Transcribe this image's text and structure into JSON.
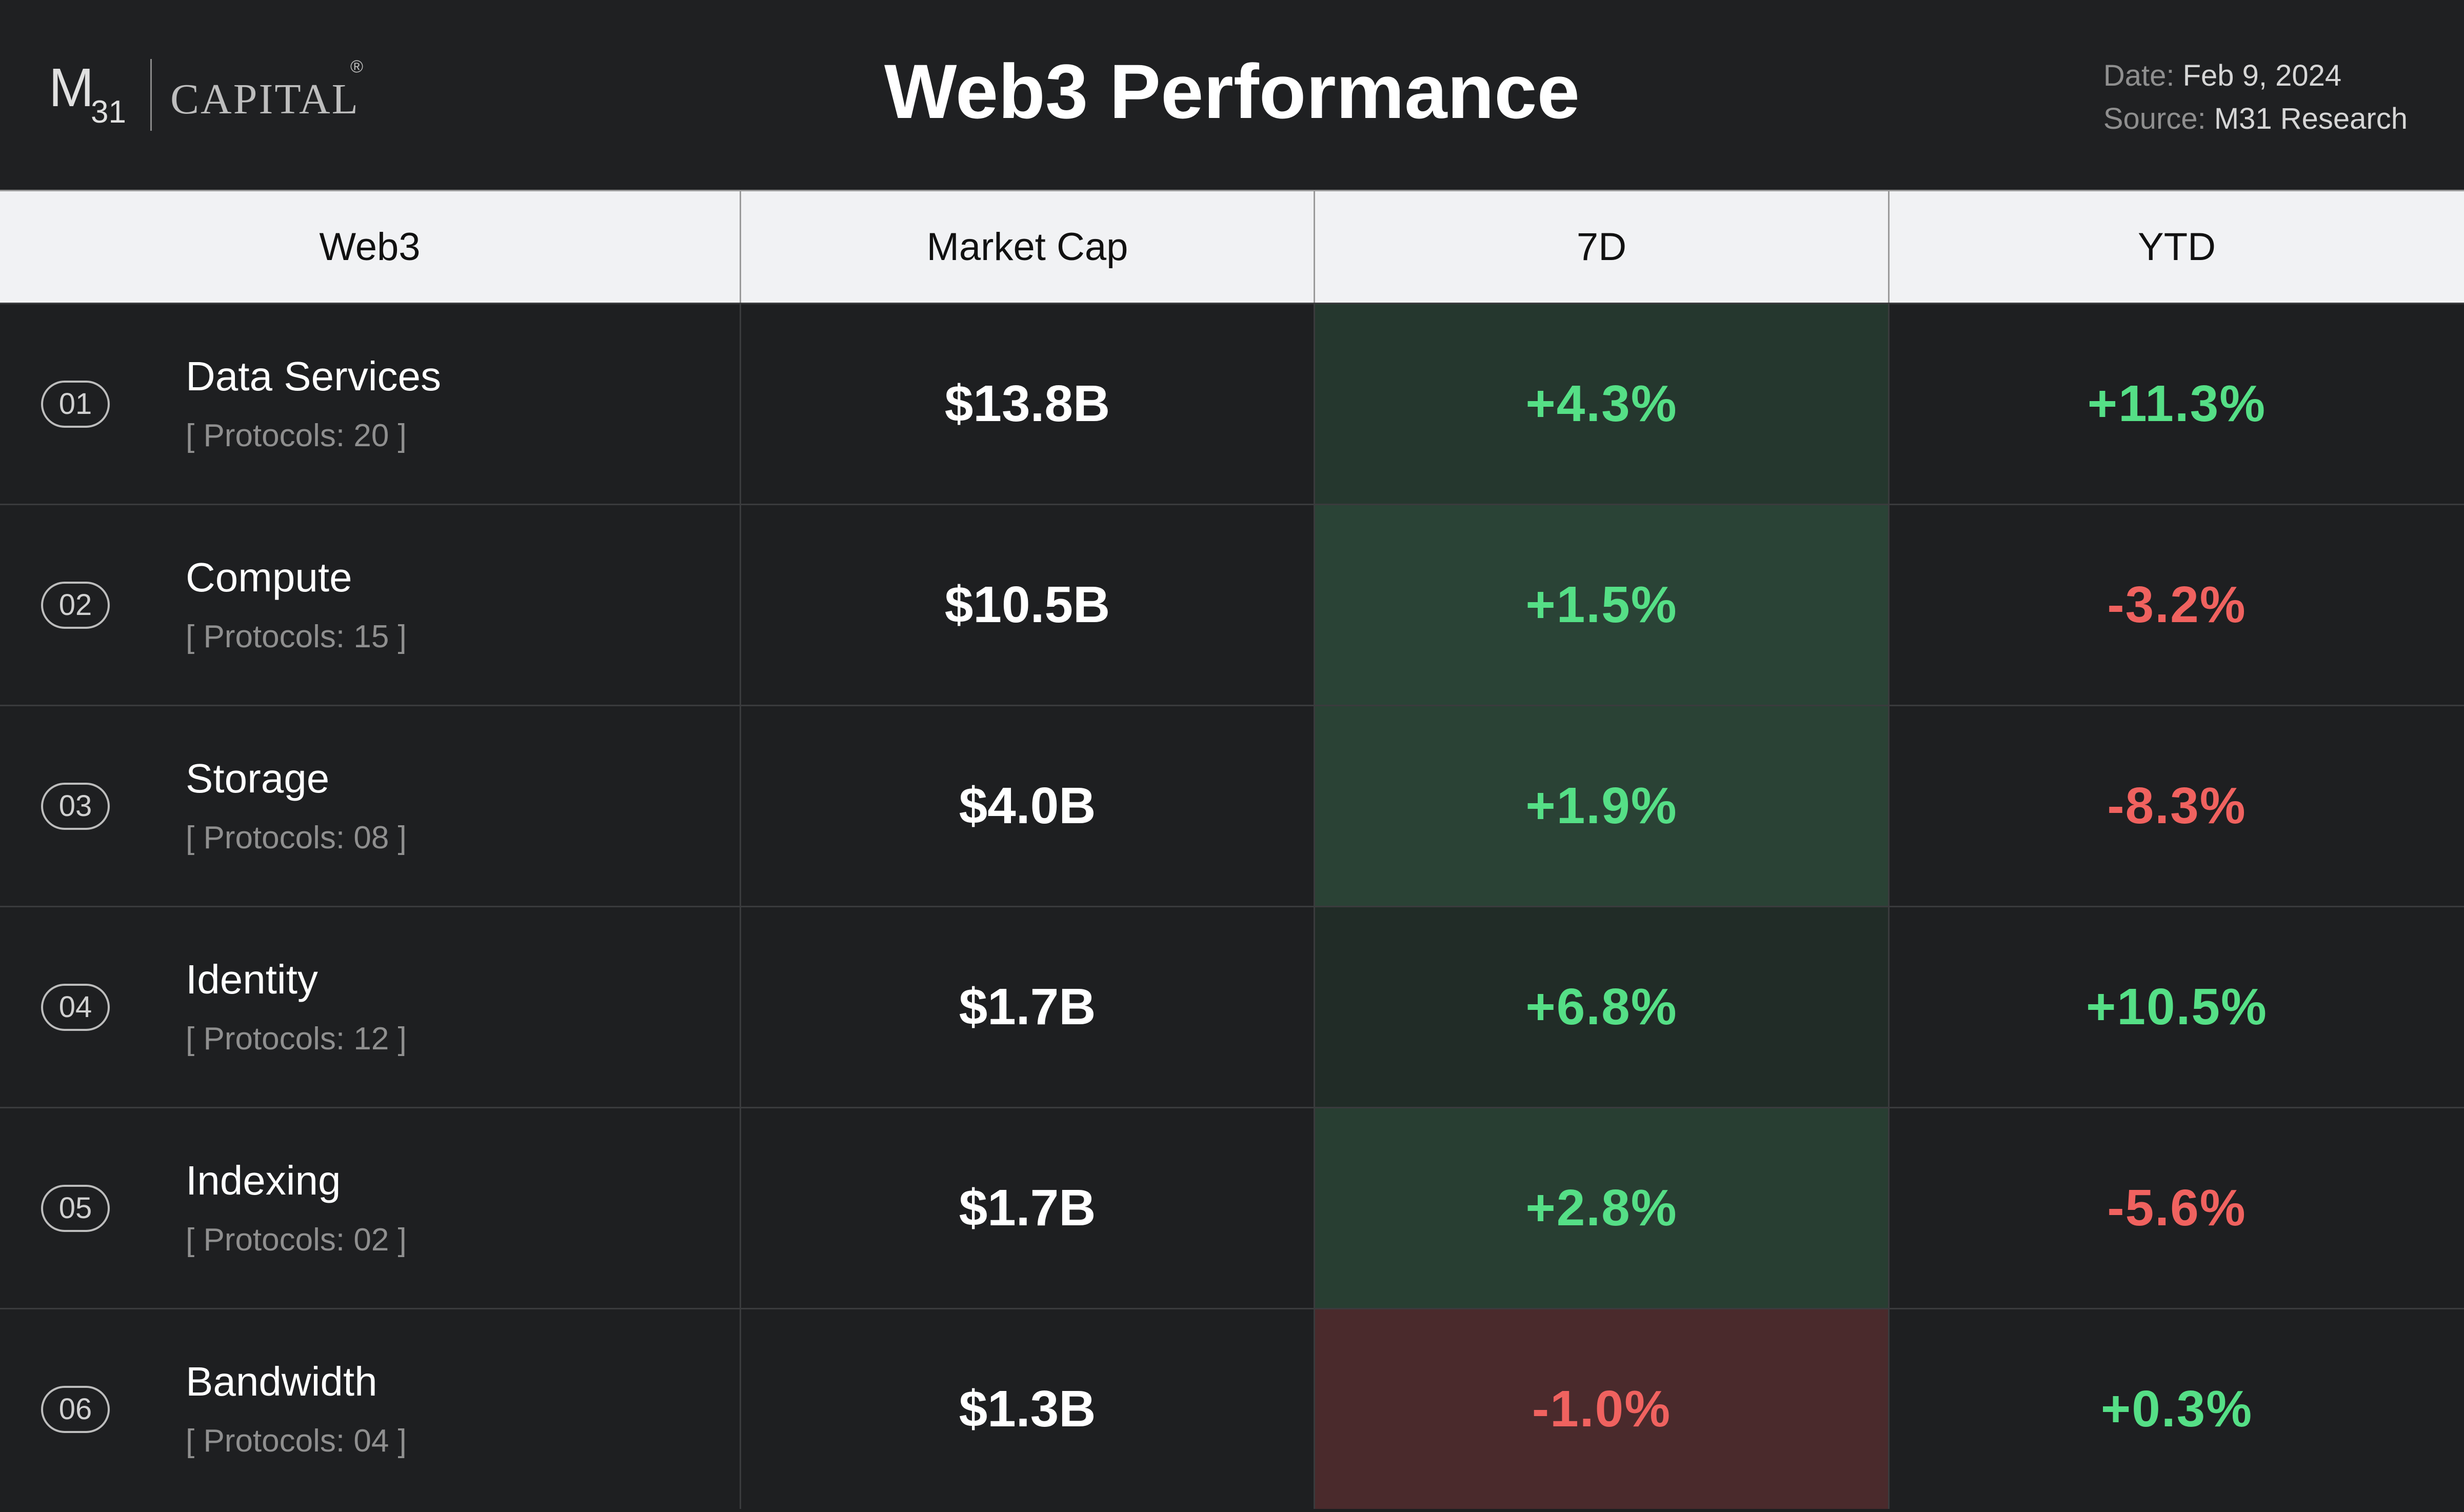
{
  "header": {
    "logo": {
      "mark": "M",
      "subscript": "31",
      "word": "CAPITAL",
      "registered": "®"
    },
    "title": "Web3 Performance",
    "date_label": "Date:",
    "date_value": "Feb 9, 2024",
    "source_label": "Source:",
    "source_value": "M31 Research"
  },
  "colors": {
    "positive": "#55df86",
    "negative": "#f0625f",
    "background": "#1e1f21",
    "header_row": "#f1f2f4"
  },
  "chart_data": {
    "type": "table",
    "title": "Web3 Performance",
    "columns": [
      "Web3",
      "Market Cap",
      "7D",
      "YTD"
    ],
    "heatmap_column": "7D",
    "rows": [
      {
        "rank": "01",
        "category": "Data Services",
        "protocols": "[ Protocols: 20 ]",
        "market_cap": "$13.8B",
        "d7": "+4.3%",
        "d7_value": 4.3,
        "ytd": "+11.3%",
        "ytd_value": 11.3
      },
      {
        "rank": "02",
        "category": "Compute",
        "protocols": "[ Protocols: 15 ]",
        "market_cap": "$10.5B",
        "d7": "+1.5%",
        "d7_value": 1.5,
        "ytd": "-3.2%",
        "ytd_value": -3.2
      },
      {
        "rank": "03",
        "category": "Storage",
        "protocols": "[ Protocols: 08 ]",
        "market_cap": "$4.0B",
        "d7": "+1.9%",
        "d7_value": 1.9,
        "ytd": "-8.3%",
        "ytd_value": -8.3
      },
      {
        "rank": "04",
        "category": "Identity",
        "protocols": "[ Protocols: 12 ]",
        "market_cap": "$1.7B",
        "d7": "+6.8%",
        "d7_value": 6.8,
        "ytd": "+10.5%",
        "ytd_value": 10.5
      },
      {
        "rank": "05",
        "category": "Indexing",
        "protocols": "[ Protocols: 02 ]",
        "market_cap": "$1.7B",
        "d7": "+2.8%",
        "d7_value": 2.8,
        "ytd": "-5.6%",
        "ytd_value": -5.6
      },
      {
        "rank": "06",
        "category": "Bandwidth",
        "protocols": "[ Protocols: 04 ]",
        "market_cap": "$1.3B",
        "d7": "-1.0%",
        "d7_value": -1.0,
        "ytd": "+0.3%",
        "ytd_value": 0.3
      }
    ]
  }
}
